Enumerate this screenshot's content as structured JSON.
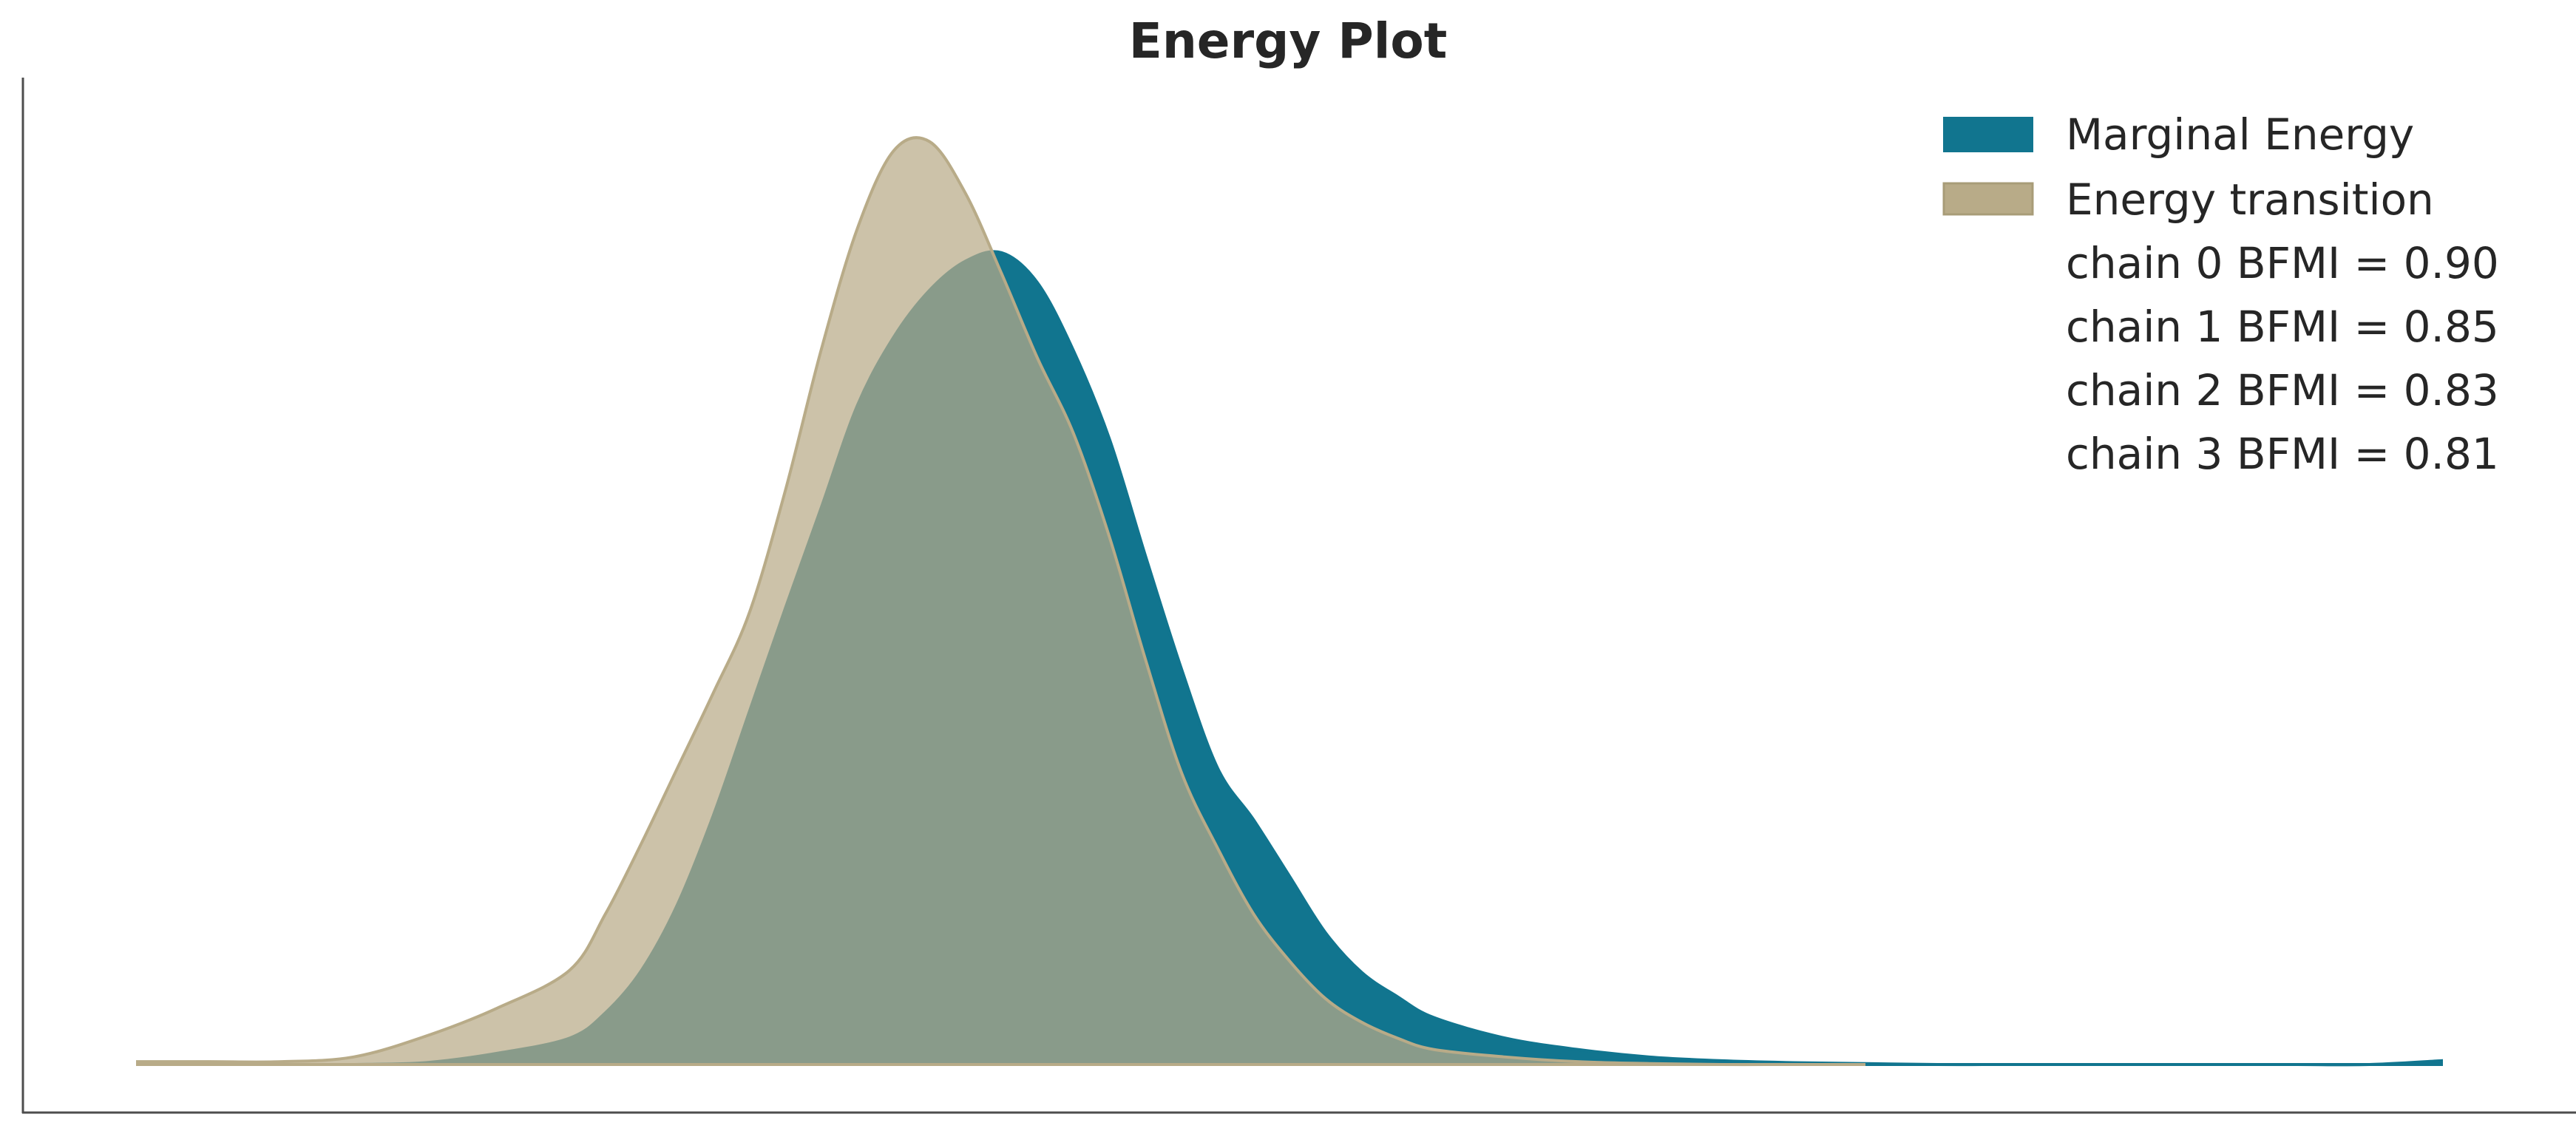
{
  "chart_data": {
    "type": "area",
    "title": "Energy Plot",
    "xlabel": "",
    "ylabel": "",
    "x_ticks": "none",
    "y_ticks": "none",
    "grid": false,
    "legend_position": "top-right",
    "x": [
      -6,
      -5.5,
      -5,
      -4.5,
      -4,
      -3.5,
      -3,
      -2.75,
      -2.5,
      -2.25,
      -2,
      -1.75,
      -1.5,
      -1.25,
      -1,
      -0.75,
      -0.5,
      -0.25,
      0,
      0.25,
      0.5,
      0.75,
      1,
      1.25,
      1.5,
      1.75,
      2,
      2.25,
      2.5,
      2.75,
      3,
      3.5,
      4,
      4.5,
      5,
      5.5,
      6,
      6.5,
      7,
      7.5,
      8,
      8.5,
      9,
      9.5,
      10
    ],
    "series": [
      {
        "name": "Marginal Energy",
        "color": "#11758f",
        "values": [
          null,
          null,
          null,
          0,
          0.002,
          0.012,
          0.028,
          0.055,
          0.1,
          0.17,
          0.265,
          0.375,
          0.485,
          0.592,
          0.7,
          0.772,
          0.822,
          0.853,
          0.862,
          0.83,
          0.758,
          0.664,
          0.54,
          0.42,
          0.315,
          0.26,
          0.2,
          0.14,
          0.098,
          0.072,
          0.05,
          0.028,
          0.016,
          0.008,
          0.004,
          0.002,
          0.001,
          0,
          0,
          0,
          0,
          0,
          0,
          0,
          0.004
        ]
      },
      {
        "name": "Energy transition",
        "color": "#b8ab88",
        "values": [
          0.003,
          0.003,
          0.003,
          0.008,
          0.03,
          0.06,
          0.1,
          0.16,
          0.235,
          0.315,
          0.395,
          0.48,
          0.61,
          0.76,
          0.888,
          0.97,
          0.98,
          0.925,
          0.84,
          0.75,
          0.67,
          0.56,
          0.43,
          0.31,
          0.23,
          0.16,
          0.11,
          0.07,
          0.045,
          0.028,
          0.016,
          0.008,
          0.003,
          0.001,
          0,
          0,
          0,
          null,
          null,
          null,
          null,
          null,
          null,
          null,
          null
        ]
      }
    ],
    "xlim": [
      -6,
      10
    ],
    "ylim": [
      0,
      1
    ],
    "legend": {
      "entries": [
        "Marginal Energy",
        "Energy transition"
      ],
      "bfmi_labels": [
        "chain  0 BFMI = 0.90",
        "chain  1 BFMI = 0.85",
        "chain  2 BFMI = 0.83",
        "chain  3 BFMI = 0.81"
      ]
    }
  }
}
